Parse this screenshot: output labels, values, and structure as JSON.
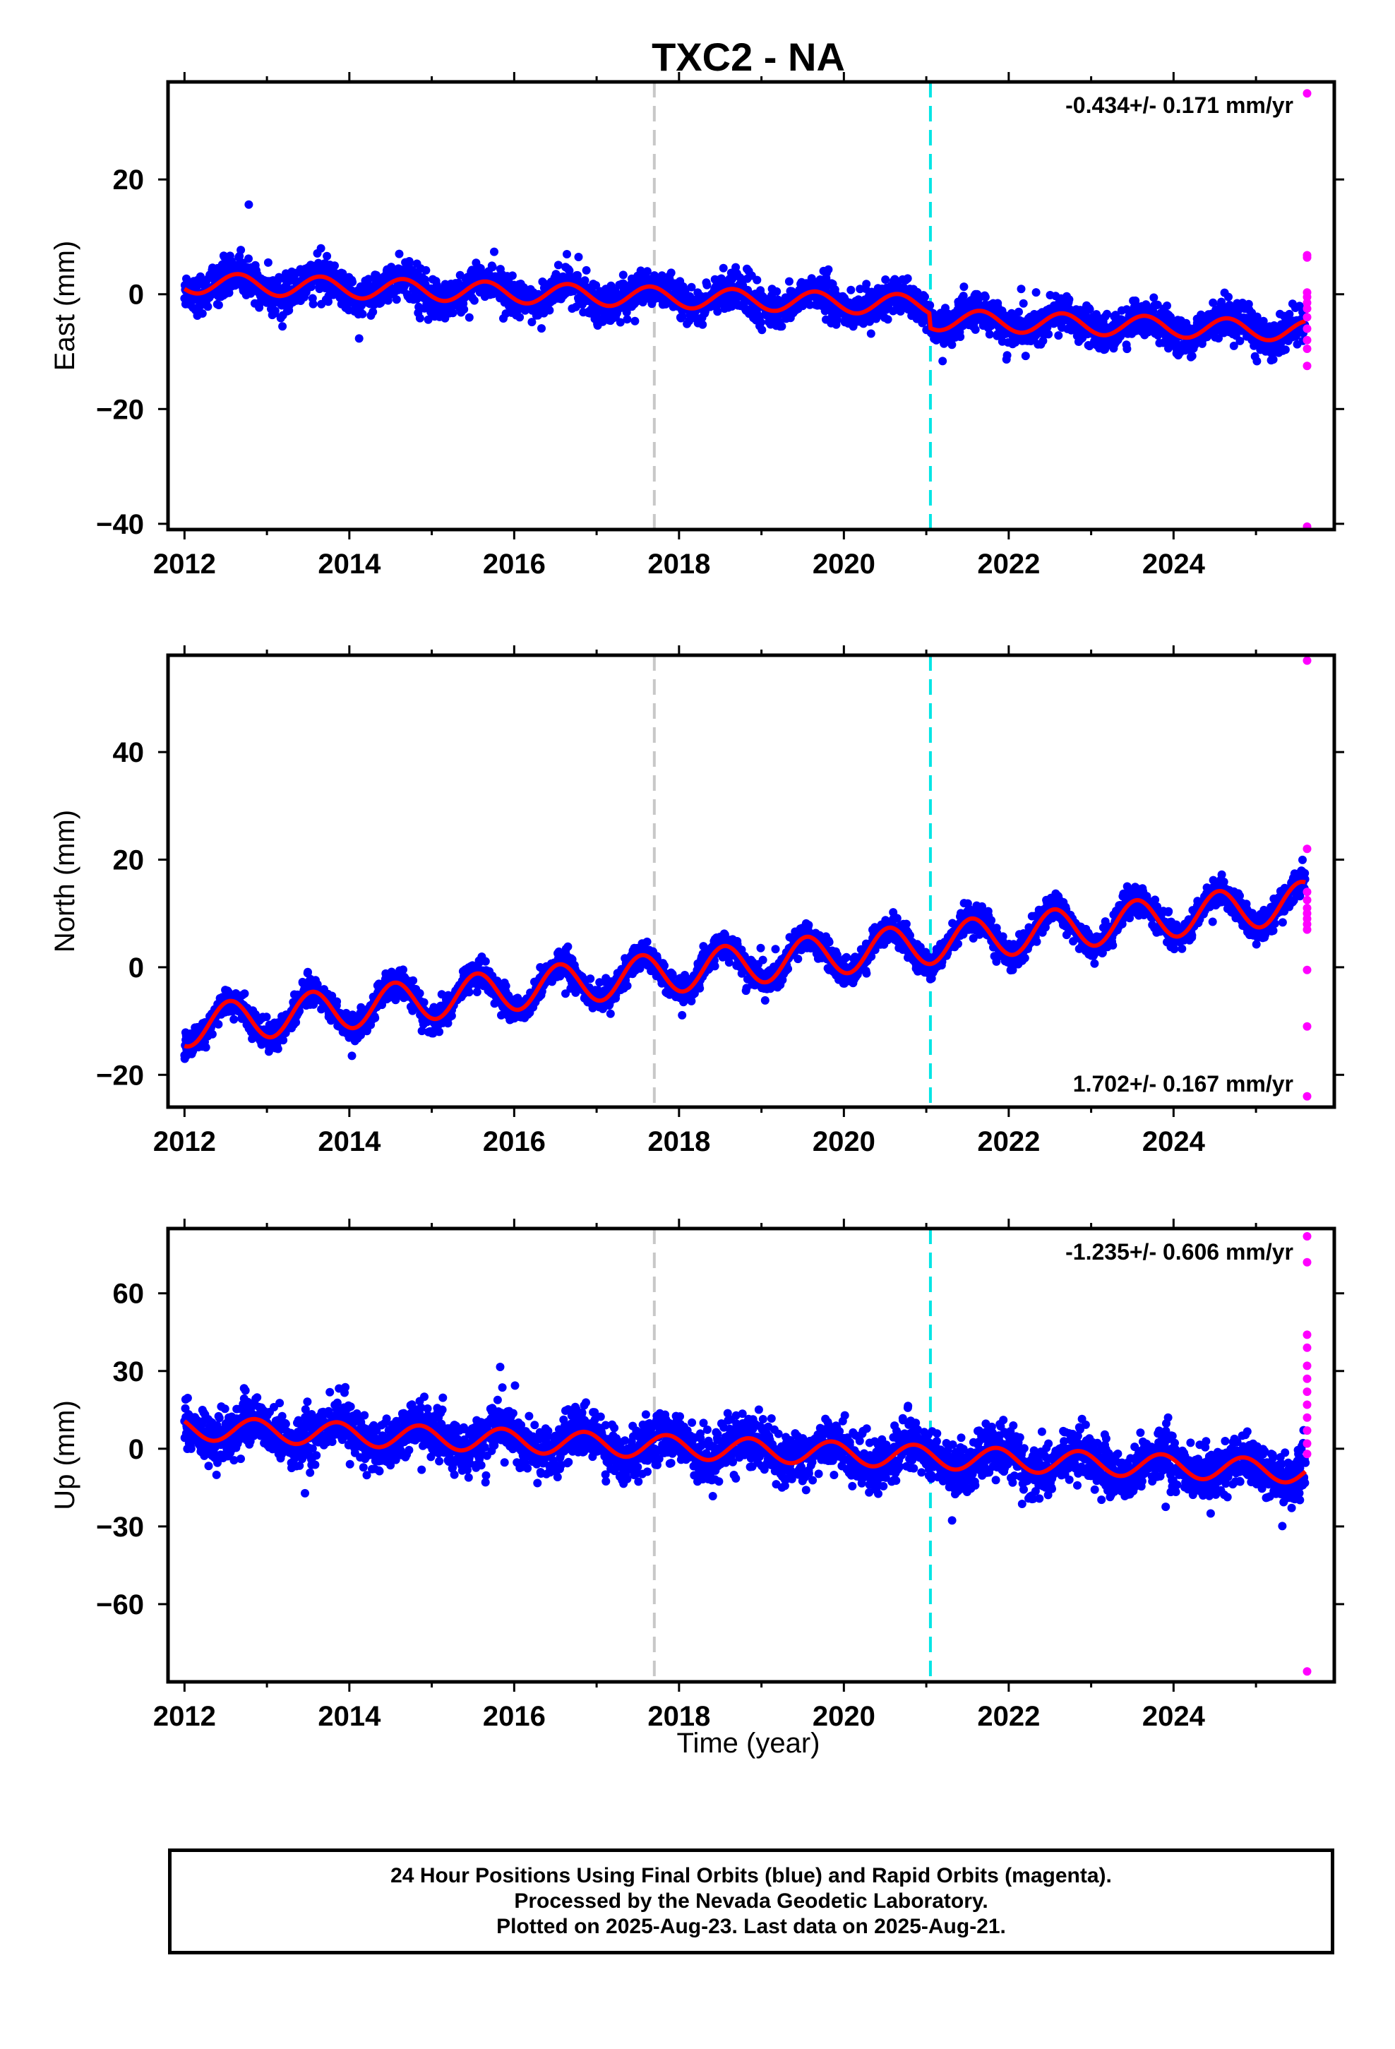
{
  "title": "TXC2 - NA",
  "xlabel": "Time (year)",
  "colors": {
    "final_orbits": "#0000ff",
    "rapid_orbits": "#ff00ff",
    "model": "#ff0000",
    "equipment_change": "#c8c8c8",
    "earthquake": "#00e5e5"
  },
  "footer": {
    "line1": "24 Hour Positions Using Final Orbits (blue) and Rapid Orbits (magenta).",
    "line2": "Processed by the Nevada Geodetic Laboratory.",
    "line3": "Plotted on 2025-Aug-23. Last data on 2025-Aug-21."
  },
  "chart_data": [
    {
      "type": "scatter",
      "component": "east",
      "ylabel": "East (mm)",
      "rate_label": "-0.434+/- 0.171 mm/yr",
      "rate_position": "top-right",
      "xlim": [
        2011.8,
        2025.95
      ],
      "ylim": [
        -41,
        37
      ],
      "xticks": [
        2012,
        2014,
        2016,
        2018,
        2020,
        2022,
        2024
      ],
      "yticks": [
        -40,
        -20,
        0,
        20
      ],
      "ytick_labels": [
        "−40",
        "−20",
        "0",
        "20"
      ],
      "vlines": [
        {
          "x": 2017.7,
          "kind": "equipment_change"
        },
        {
          "x": 2021.05,
          "kind": "earthquake"
        }
      ],
      "trend": {
        "rate": -0.434,
        "uncertainty": 0.171
      },
      "model": {
        "offset_2012": 2.0,
        "annual_amp": 1.8,
        "annual_peak": 0.65,
        "steps": [
          {
            "x": 2021.05,
            "dy": -2.5
          }
        ]
      },
      "scatter_noise": 1.6,
      "final_range": [
        2012.0,
        2025.6
      ],
      "rapid_orbits": [
        35,
        6.8,
        6.4,
        0.3,
        -0.5,
        -1.5,
        -2.5,
        -4,
        -6,
        -8,
        -9.5,
        -12.5,
        -40.5
      ]
    },
    {
      "type": "scatter",
      "component": "north",
      "ylabel": "North (mm)",
      "rate_label": "1.702+/- 0.167 mm/yr",
      "rate_position": "bottom-right",
      "xlim": [
        2011.8,
        2025.95
      ],
      "ylim": [
        -26,
        58
      ],
      "xticks": [
        2012,
        2014,
        2016,
        2018,
        2020,
        2022,
        2024
      ],
      "yticks": [
        -20,
        0,
        20,
        40
      ],
      "ytick_labels": [
        "−20",
        "0",
        "20",
        "40"
      ],
      "vlines": [
        {
          "x": 2017.7,
          "kind": "equipment_change"
        },
        {
          "x": 2021.05,
          "kind": "earthquake"
        }
      ],
      "trend": {
        "rate": 1.702,
        "uncertainty": 0.167
      },
      "model": {
        "offset_2012": -11.0,
        "annual_amp": 3.8,
        "annual_peak": 0.55,
        "steps": []
      },
      "scatter_noise": 1.3,
      "final_range": [
        2012.0,
        2025.6
      ],
      "rapid_orbits": [
        57,
        22,
        14,
        12.5,
        11,
        10,
        9,
        8,
        7,
        -0.5,
        -11,
        -24
      ]
    },
    {
      "type": "scatter",
      "component": "up",
      "ylabel": "Up (mm)",
      "rate_label": "-1.235+/- 0.606 mm/yr",
      "rate_position": "top-right",
      "xlim": [
        2011.8,
        2025.95
      ],
      "ylim": [
        -90,
        85
      ],
      "xticks": [
        2012,
        2014,
        2016,
        2018,
        2020,
        2022,
        2024
      ],
      "yticks": [
        -60,
        -30,
        0,
        30,
        60
      ],
      "ytick_labels": [
        "−60",
        "−30",
        "0",
        "30",
        "60"
      ],
      "vlines": [
        {
          "x": 2017.7,
          "kind": "equipment_change"
        },
        {
          "x": 2021.05,
          "kind": "earthquake"
        }
      ],
      "trend": {
        "rate": -1.235,
        "uncertainty": 0.606
      },
      "model": {
        "offset_2012": 8.0,
        "annual_amp": 4.5,
        "annual_peak": 0.85,
        "steps": []
      },
      "scatter_noise": 5.0,
      "final_range": [
        2012.0,
        2025.6
      ],
      "rapid_orbits": [
        82,
        72,
        44,
        39,
        32,
        27,
        22,
        17,
        12,
        7,
        2,
        -2,
        -86
      ]
    }
  ]
}
